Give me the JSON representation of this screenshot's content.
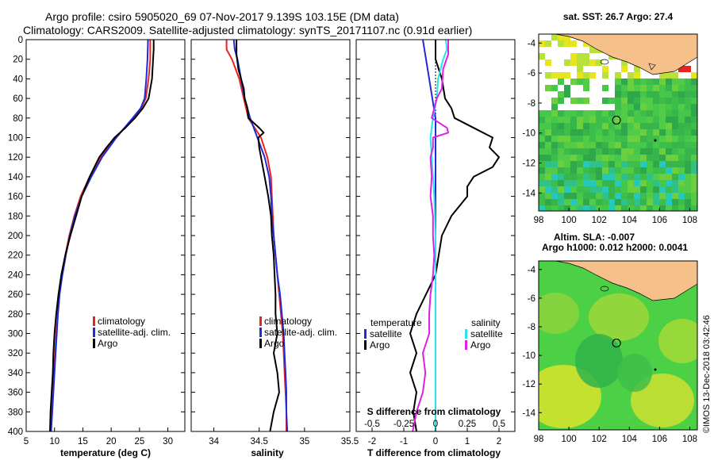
{
  "header": {
    "line1": "Argo profile: csiro 5905020_69 07-Nov-2017 9.139S 103.15E (DM data)",
    "line2": "Climatology: CARS2009. Satellite-adjusted climatology: synTS_20171107.nc (0.91d earlier)"
  },
  "colors": {
    "climatology": "#e8231f",
    "satellite": "#1f2bd6",
    "argo": "#000000",
    "satellite_salinity": "#27e2ec",
    "argo_salinity": "#e020e0",
    "land": "#f5c08a",
    "sea_green": "#3cc03c"
  },
  "credit": "©IMOS 13-Dec-2018 03:42:46",
  "chart_data": [
    {
      "type": "line",
      "id": "temperature",
      "xlabel": "temperature (deg C)",
      "ylabel": "",
      "xlim": [
        5,
        33
      ],
      "ylim": [
        400,
        0
      ],
      "xticks": [
        5,
        10,
        15,
        20,
        25,
        30
      ],
      "yticks": [
        0,
        20,
        40,
        60,
        80,
        100,
        120,
        140,
        160,
        180,
        200,
        220,
        240,
        260,
        280,
        300,
        320,
        340,
        360,
        380,
        400
      ],
      "legend": [
        {
          "label": "climatology",
          "series": "climatology"
        },
        {
          "label": "satellite-adj. clim.",
          "series": "satellite"
        },
        {
          "label": "Argo",
          "series": "argo"
        }
      ],
      "series": [
        {
          "name": "climatology",
          "color_key": "climatology",
          "depth": [
            0,
            20,
            40,
            60,
            70,
            80,
            100,
            120,
            140,
            160,
            180,
            200,
            220,
            240,
            260,
            280,
            300,
            320,
            340,
            360,
            380,
            400
          ],
          "values": [
            26.9,
            26.9,
            26.6,
            26.1,
            25.3,
            23.9,
            20.8,
            18.2,
            16.2,
            14.6,
            13.5,
            12.6,
            11.9,
            11.3,
            10.9,
            10.6,
            10.3,
            10.1,
            9.9,
            9.7,
            9.5,
            9.3
          ]
        },
        {
          "name": "satellite",
          "color_key": "satellite",
          "depth": [
            0,
            20,
            40,
            60,
            70,
            80,
            100,
            120,
            140,
            160,
            180,
            200,
            220,
            240,
            260,
            280,
            300,
            320,
            340,
            360,
            380,
            400
          ],
          "values": [
            26.5,
            26.4,
            26.2,
            25.9,
            25.2,
            23.8,
            20.9,
            18.4,
            16.5,
            14.8,
            13.6,
            12.7,
            12.0,
            11.4,
            10.9,
            10.6,
            10.4,
            10.2,
            10.0,
            9.8,
            9.6,
            9.4
          ]
        },
        {
          "name": "argo",
          "color_key": "argo",
          "depth": [
            0,
            10,
            20,
            40,
            60,
            70,
            80,
            90,
            100,
            110,
            120,
            140,
            160,
            180,
            200,
            220,
            240,
            260,
            280,
            300,
            320,
            340,
            360,
            380,
            400
          ],
          "values": [
            27.5,
            27.5,
            27.4,
            27.2,
            26.6,
            25.6,
            24.2,
            22.5,
            20.6,
            19.2,
            17.9,
            16.2,
            14.8,
            13.8,
            12.8,
            11.9,
            11.2,
            10.7,
            10.3,
            10.0,
            9.8,
            9.7,
            9.5,
            9.3,
            9.2
          ]
        }
      ]
    },
    {
      "type": "line",
      "id": "salinity",
      "xlabel": "salinity",
      "ylabel": "",
      "xlim": [
        33.75,
        35.5
      ],
      "ylim": [
        400,
        0
      ],
      "xticks": [
        34,
        34.5,
        35,
        35.5
      ],
      "legend": [
        {
          "label": "climatology",
          "series": "climatology"
        },
        {
          "label": "satellite-adj. clim.",
          "series": "satellite"
        },
        {
          "label": "Argo",
          "series": "argo"
        }
      ],
      "series": [
        {
          "name": "climatology",
          "color_key": "climatology",
          "depth": [
            0,
            10,
            20,
            40,
            60,
            80,
            100,
            120,
            140,
            160,
            180,
            200,
            220,
            240,
            260,
            280,
            300,
            320,
            340,
            360,
            380,
            400
          ],
          "values": [
            34.14,
            34.14,
            34.2,
            34.28,
            34.33,
            34.38,
            34.52,
            34.59,
            34.63,
            34.64,
            34.65,
            34.66,
            34.68,
            34.7,
            34.72,
            34.74,
            34.76,
            34.77,
            34.78,
            34.79,
            34.8,
            34.8
          ]
        },
        {
          "name": "satellite",
          "color_key": "satellite",
          "depth": [
            0,
            10,
            20,
            40,
            60,
            80,
            100,
            120,
            140,
            160,
            180,
            200,
            220,
            240,
            260,
            280,
            300,
            320,
            340,
            360,
            380,
            400
          ],
          "values": [
            34.22,
            34.23,
            34.26,
            34.3,
            34.34,
            34.4,
            34.48,
            34.56,
            34.61,
            34.63,
            34.64,
            34.66,
            34.68,
            34.7,
            34.73,
            34.75,
            34.77,
            34.78,
            34.79,
            34.8,
            34.8,
            34.81
          ]
        },
        {
          "name": "argo",
          "color_key": "argo",
          "depth": [
            0,
            15,
            30,
            50,
            60,
            70,
            80,
            90,
            95,
            100,
            110,
            120,
            140,
            160,
            180,
            200,
            220,
            240,
            260,
            280,
            300,
            320,
            340,
            360,
            380,
            400
          ],
          "values": [
            34.25,
            34.25,
            34.27,
            34.33,
            34.34,
            34.37,
            34.38,
            34.5,
            34.55,
            34.49,
            34.5,
            34.52,
            34.56,
            34.6,
            34.63,
            34.64,
            34.66,
            34.67,
            34.68,
            34.68,
            34.7,
            34.66,
            34.7,
            34.72,
            34.66,
            34.62
          ]
        }
      ]
    },
    {
      "type": "line",
      "id": "difference",
      "xlabel": "T difference from climatology",
      "xlabel2": "S difference from climatology",
      "xlim": [
        -2.5,
        2.5
      ],
      "ylim": [
        400,
        0
      ],
      "xticks": [
        -2,
        -1,
        0,
        1,
        2
      ],
      "sxlim": [
        -0.625,
        0.625
      ],
      "sxticks": [
        -0.5,
        -0.25,
        0,
        0.25,
        0.5
      ],
      "legend_temperature_title": "temperature",
      "legend_salinity_title": "salinity",
      "legend_temperature": [
        {
          "label": "satellite",
          "series": "t_satellite"
        },
        {
          "label": "Argo",
          "series": "t_argo"
        }
      ],
      "legend_salinity": [
        {
          "label": "satellite",
          "series": "s_satellite"
        },
        {
          "label": "Argo",
          "series": "s_argo"
        }
      ],
      "series": [
        {
          "name": "t_satellite",
          "color_key": "satellite",
          "units": "T",
          "depth": [
            0,
            20,
            40,
            60,
            80,
            100,
            120,
            140,
            160,
            200,
            260,
            300,
            340,
            400
          ],
          "values": [
            -0.4,
            -0.3,
            -0.2,
            -0.1,
            0.0,
            0.0,
            0.0,
            0.0,
            0.0,
            0.0,
            0.0,
            0.0,
            0.0,
            0.0
          ]
        },
        {
          "name": "t_argo",
          "color_key": "argo",
          "units": "T",
          "depth": [
            0,
            10,
            20,
            40,
            60,
            70,
            80,
            90,
            100,
            110,
            120,
            130,
            140,
            150,
            160,
            180,
            200,
            220,
            240,
            260,
            280,
            300,
            320,
            340,
            360,
            380,
            400
          ],
          "values": [
            0.0,
            0.0,
            0.0,
            0.2,
            0.3,
            0.5,
            0.6,
            1.2,
            1.8,
            1.7,
            2.0,
            1.8,
            1.2,
            1.0,
            1.0,
            0.5,
            0.2,
            0.1,
            0.0,
            -0.3,
            -0.6,
            -0.8,
            -0.6,
            -0.8,
            -0.6,
            -0.7,
            -0.6
          ]
        },
        {
          "name": "s_satellite",
          "color_key": "satellite_salinity",
          "units": "S",
          "depth": [
            0,
            10,
            20,
            40,
            60,
            80,
            100,
            120,
            140,
            160,
            200,
            260,
            300,
            340,
            400
          ],
          "values": [
            0.08,
            0.09,
            0.06,
            0.02,
            0.01,
            -0.02,
            -0.04,
            -0.03,
            -0.02,
            -0.01,
            0.0,
            0.0,
            0.0,
            0.0,
            0.0
          ]
        },
        {
          "name": "s_argo",
          "color_key": "argo_salinity",
          "units": "S",
          "depth": [
            0,
            15,
            30,
            50,
            60,
            70,
            80,
            90,
            95,
            100,
            110,
            120,
            140,
            160,
            180,
            200,
            220,
            240,
            260,
            280,
            300,
            320,
            340,
            360,
            380,
            400
          ],
          "values": [
            0.1,
            0.1,
            0.06,
            0.05,
            0.01,
            -0.01,
            -0.03,
            0.09,
            0.1,
            -0.02,
            -0.02,
            -0.04,
            -0.03,
            -0.04,
            -0.02,
            -0.02,
            -0.01,
            -0.02,
            -0.04,
            -0.05,
            -0.05,
            -0.1,
            -0.08,
            -0.1,
            -0.15,
            -0.18
          ]
        }
      ]
    },
    {
      "type": "heatmap",
      "id": "sst_map",
      "title": "sat. SST: 26.7 Argo: 27.4",
      "xlim": [
        98,
        108.5
      ],
      "ylim": [
        -15.2,
        -3.4
      ],
      "xticks": [
        98,
        100,
        102,
        104,
        106,
        108
      ],
      "yticks": [
        -4,
        -6,
        -8,
        -10,
        -12,
        -14
      ],
      "marker": {
        "lon": 103.15,
        "lat": -9.139
      }
    },
    {
      "type": "heatmap",
      "id": "sla_map",
      "title": "Altim. SLA: -0.007",
      "subtitle": "Argo h1000: 0.012 h2000: 0.0041",
      "xlim": [
        98,
        108.5
      ],
      "ylim": [
        -15.2,
        -3.4
      ],
      "xticks": [
        98,
        100,
        102,
        104,
        106,
        108
      ],
      "yticks": [
        -4,
        -6,
        -8,
        -10,
        -12,
        -14
      ],
      "marker": {
        "lon": 103.15,
        "lat": -9.139
      }
    }
  ]
}
